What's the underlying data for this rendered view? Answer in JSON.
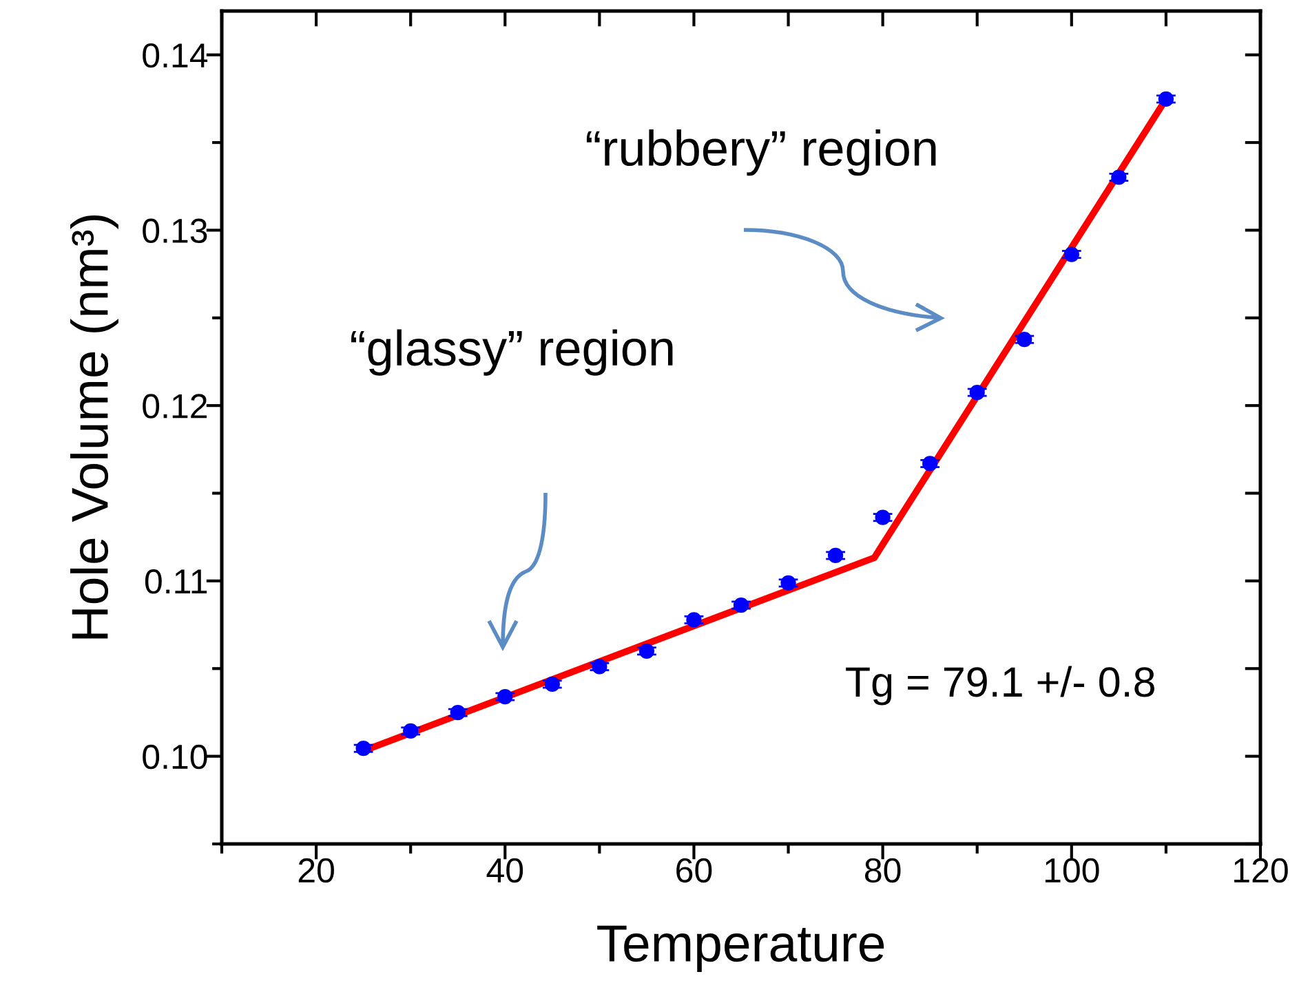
{
  "chart_data": {
    "type": "scatter",
    "xlabel": "Temperature",
    "ylabel": "Hole Volume (nm³)",
    "x": [
      25,
      30,
      35,
      40,
      45,
      50,
      55,
      60,
      65,
      70,
      75,
      80,
      85,
      90,
      95,
      100,
      105,
      110
    ],
    "series": [
      {
        "color": "#0000ff",
        "marker": "circle",
        "values": [
          0.10045,
          0.10144,
          0.10249,
          0.1034,
          0.10411,
          0.10511,
          0.106,
          0.10778,
          0.10862,
          0.10988,
          0.11145,
          0.11362,
          0.11669,
          0.12075,
          0.12377,
          0.12862,
          0.13302,
          0.13748
        ],
        "errors": [
          0.0002,
          0.0002,
          0.0002,
          0.0002,
          0.0002,
          0.0002,
          0.0002,
          0.0002,
          0.0002,
          0.0002,
          0.0002,
          0.0002,
          0.0002,
          0.0002,
          0.0002,
          0.0002,
          0.0002,
          0.0002
        ]
      },
      {
        "type": "line",
        "color": "#ff0000",
        "marker": "none",
        "line_style": "solid",
        "x": [
          25,
          79.1,
          110
        ],
        "values": [
          0.10031,
          0.11132,
          0.13748
        ]
      }
    ],
    "xlim": [
      10,
      120
    ],
    "xticks": [
      {
        "value": 10,
        "label": null
      },
      20,
      {
        "value": 30,
        "label": null
      },
      40,
      {
        "value": 50,
        "label": null
      },
      60,
      {
        "value": 70,
        "label": null
      },
      80,
      {
        "value": 90,
        "label": null
      },
      100,
      {
        "value": 110,
        "label": null
      },
      120
    ],
    "ylim": [
      0.095,
      0.1425
    ],
    "yticks": [
      {
        "value": 0.095,
        "label": null
      },
      {
        "value": 0.1,
        "label": "0.10"
      },
      {
        "value": 0.105,
        "label": null
      },
      {
        "value": 0.11,
        "label": "0.11"
      },
      {
        "value": 0.115,
        "label": null
      },
      {
        "value": 0.12,
        "label": "0.12"
      },
      {
        "value": 0.125,
        "label": null
      },
      {
        "value": 0.13,
        "label": "0.13"
      },
      {
        "value": 0.135,
        "label": null
      },
      {
        "value": 0.14,
        "label": "0.14"
      }
    ],
    "grid": false,
    "legend": false,
    "annotations": [
      "“rubbery” region",
      "“glassy” region",
      "Tg = 79.1 +/- 0.8"
    ]
  }
}
